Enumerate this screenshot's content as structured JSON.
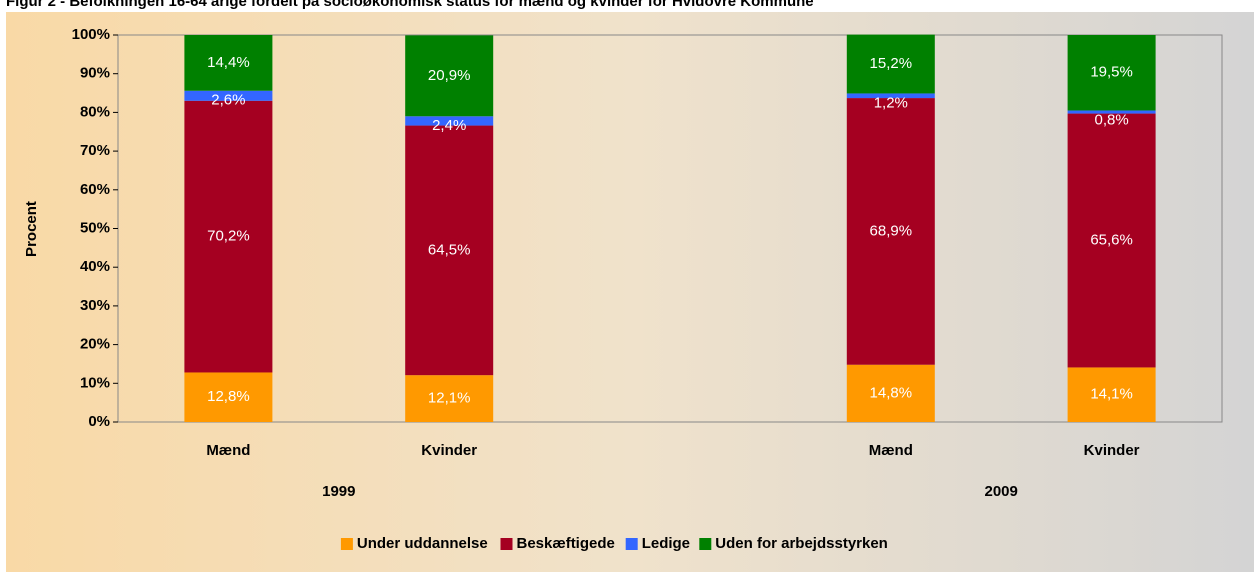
{
  "chart_data": {
    "type": "stacked_bar",
    "title": "Figur 2 - Befolkningen 16-64 årige fordelt på socioøkonomisk status for mænd og kvinder for Hvidovre Kommune",
    "y_label": "Procent",
    "categories": [
      "Mænd",
      "Kvinder",
      null,
      "Mænd",
      "Kvinder"
    ],
    "x_groups": [
      "1999",
      "2009"
    ],
    "series": [
      {
        "name": "Under uddannelse",
        "color": "#FF9900",
        "values": [
          12.8,
          12.1,
          null,
          14.8,
          14.1
        ],
        "value_labels": [
          "12,8%",
          "12,1%",
          null,
          "14,8%",
          "14,1%"
        ]
      },
      {
        "name": "Beskæftigede",
        "color": "#A50021",
        "values": [
          70.2,
          64.5,
          null,
          68.9,
          65.6
        ],
        "value_labels": [
          "70,2%",
          "64,5%",
          null,
          "68,9%",
          "65,6%"
        ]
      },
      {
        "name": "Ledige",
        "color": "#3366FF",
        "values": [
          2.6,
          2.4,
          null,
          1.2,
          0.8
        ],
        "value_labels": [
          "2,6%",
          "2,4%",
          null,
          "1,2%",
          "0,8%"
        ]
      },
      {
        "name": "Uden for arbejdsstyrken",
        "color": "#008000",
        "values": [
          14.4,
          20.9,
          null,
          15.2,
          19.5
        ],
        "value_labels": [
          "14,4%",
          "20,9%",
          null,
          "15,2%",
          "19,5%"
        ]
      }
    ],
    "ylim": [
      0,
      100
    ],
    "yticks": [
      {
        "value": 0,
        "label": "0%"
      },
      {
        "value": 10,
        "label": "10%"
      },
      {
        "value": 20,
        "label": "20%"
      },
      {
        "value": 30,
        "label": "30%"
      },
      {
        "value": 40,
        "label": "40%"
      },
      {
        "value": 50,
        "label": "50%"
      },
      {
        "value": 60,
        "label": "60%"
      },
      {
        "value": 70,
        "label": "70%"
      },
      {
        "value": 80,
        "label": "80%"
      },
      {
        "value": 90,
        "label": "90%"
      },
      {
        "value": 100,
        "label": "100%"
      }
    ],
    "legend": "bottom"
  }
}
